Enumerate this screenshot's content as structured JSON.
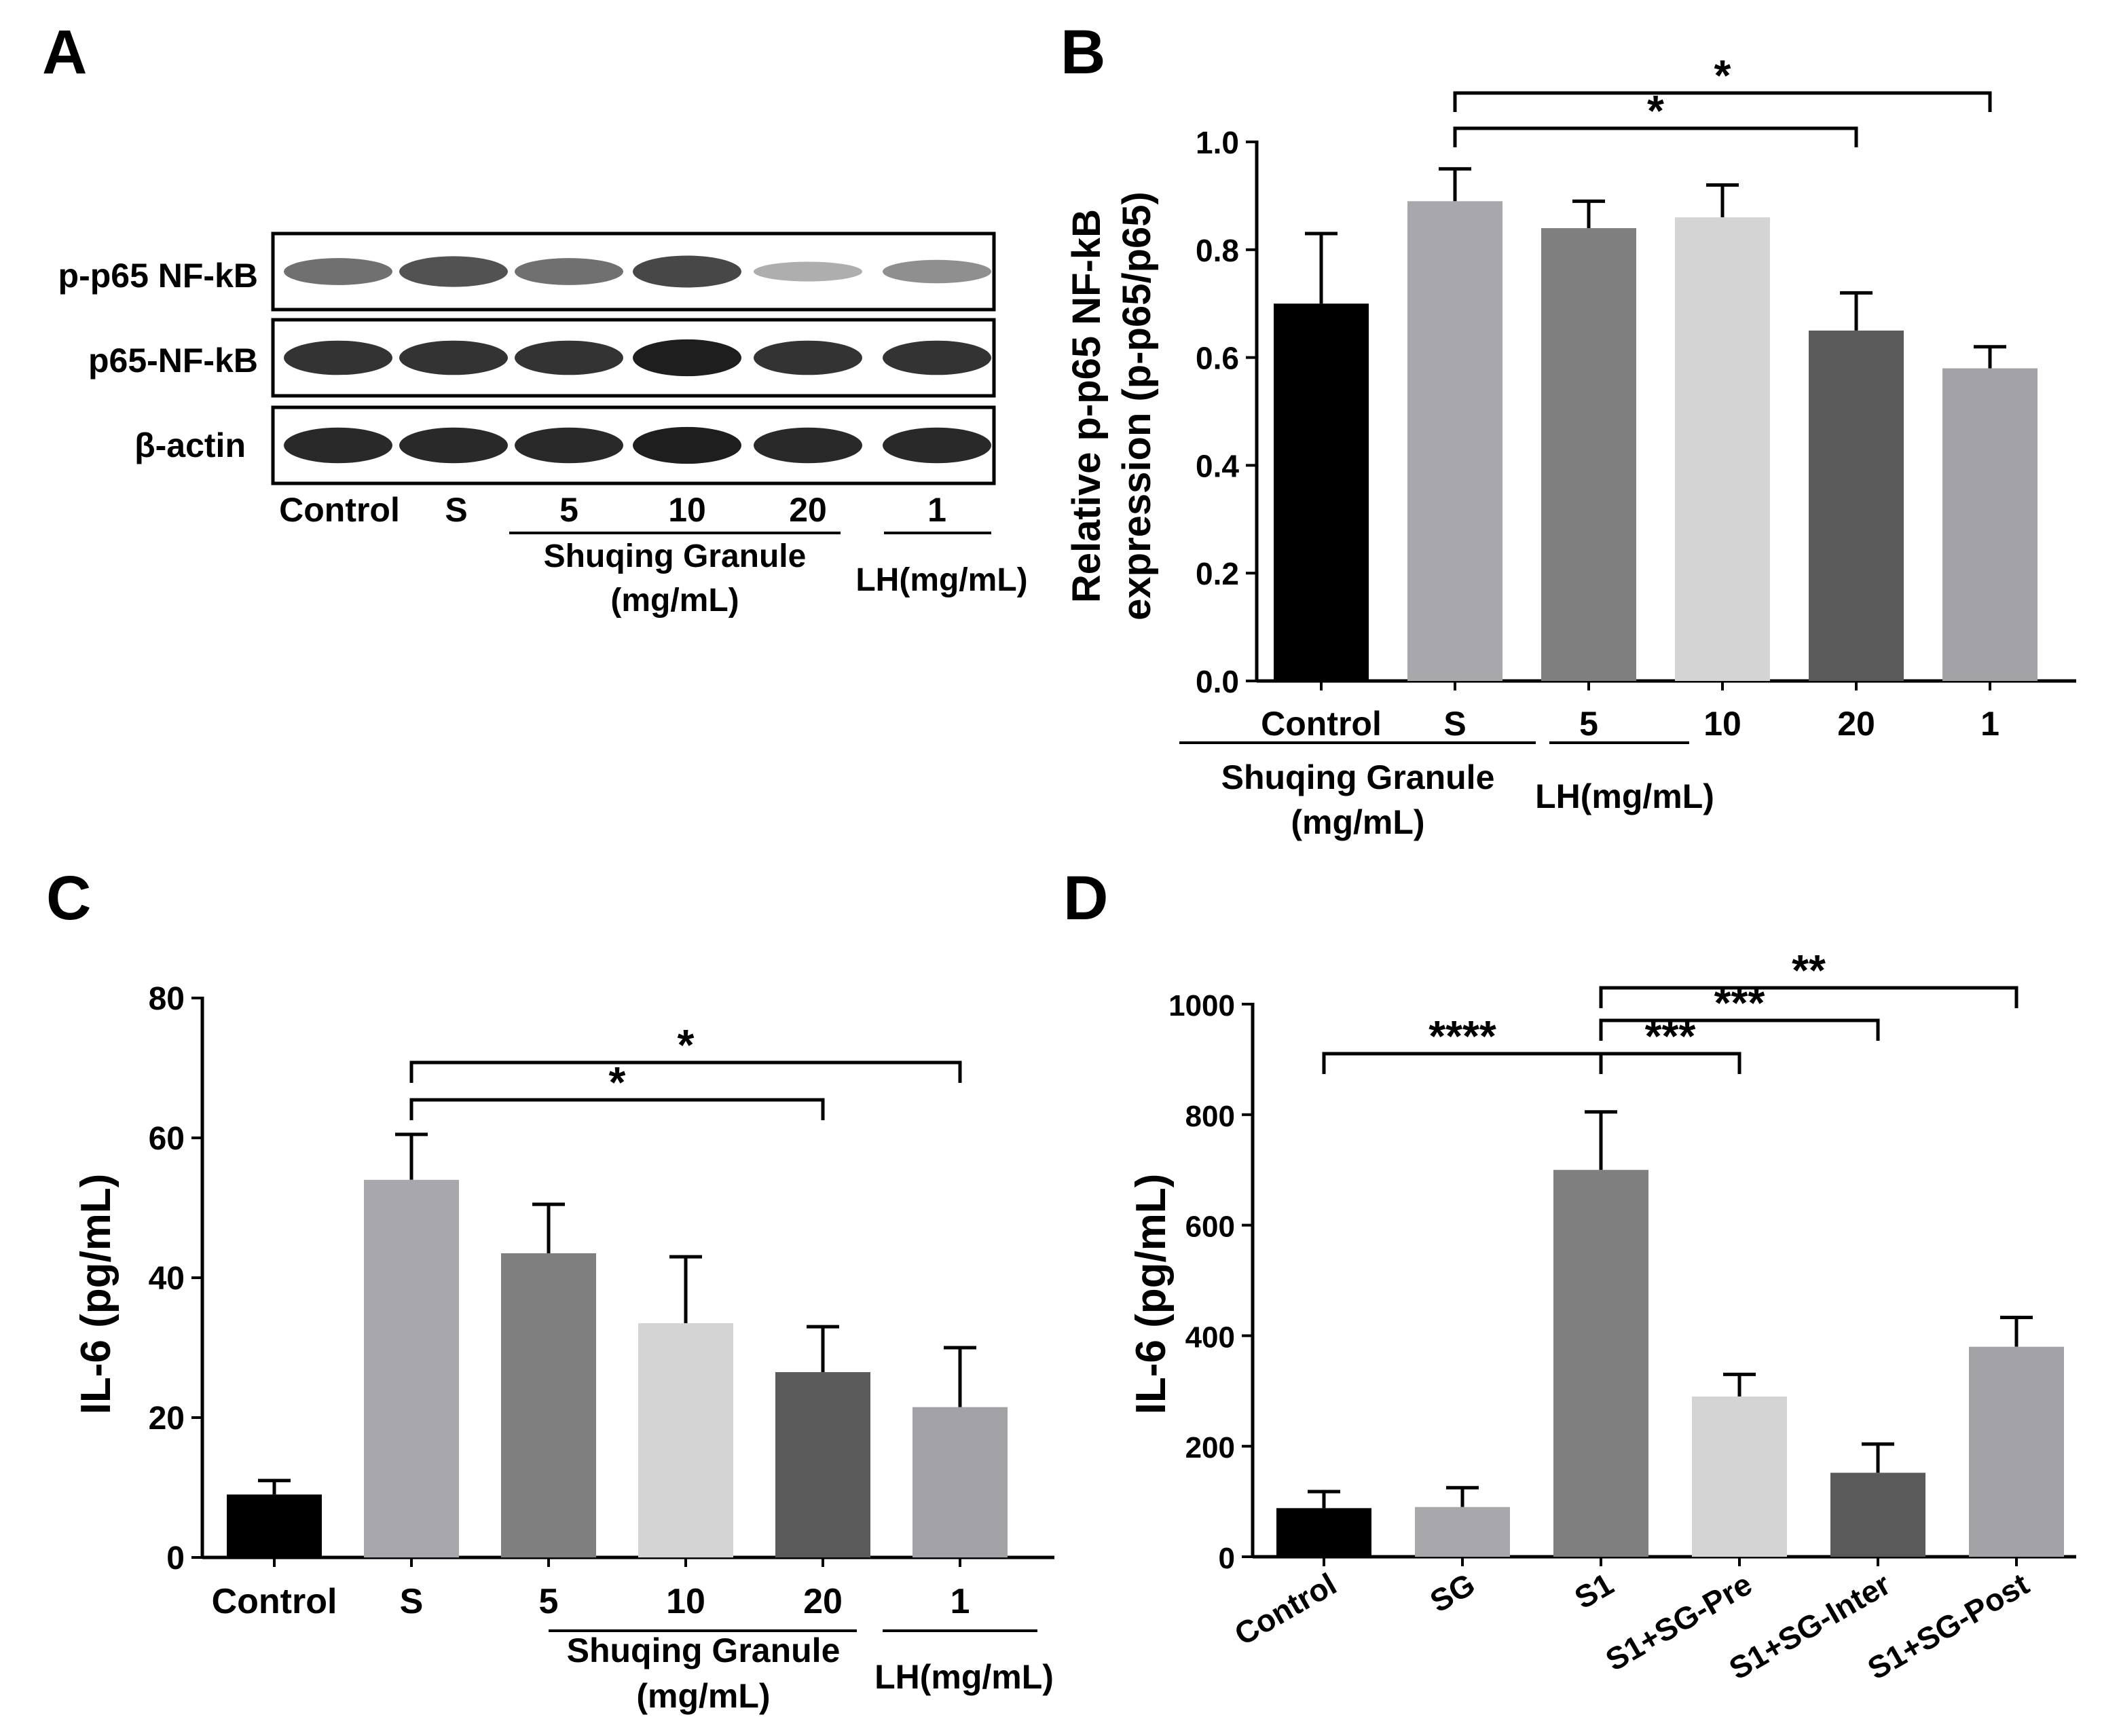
{
  "panels": {
    "A": {
      "letter": "A",
      "rows": [
        "p-p65 NF-kB",
        "p65-NF-kB",
        "β-actin"
      ],
      "lanes": [
        "Control",
        "S",
        "5",
        "10",
        "20",
        "1"
      ],
      "group_sg": [
        "Shuqing Granule",
        "(mg/mL)"
      ],
      "group_lh": "LH(mg/mL)",
      "band_intensity": [
        [
          0.55,
          0.7,
          0.55,
          0.75,
          0.25,
          0.4
        ],
        [
          0.85,
          0.85,
          0.85,
          0.95,
          0.85,
          0.85
        ],
        [
          0.9,
          0.9,
          0.9,
          0.95,
          0.9,
          0.9
        ]
      ]
    },
    "B": {
      "letter": "B"
    },
    "C": {
      "letter": "C"
    },
    "D": {
      "letter": "D"
    }
  },
  "chart_data": [
    {
      "panel": "B",
      "type": "bar",
      "ylabel": [
        "Relative p-p65 NF-kB",
        "expression (p-p65/p65)"
      ],
      "ylim": [
        0,
        1.0
      ],
      "yticks": [
        "0.0",
        "0.2",
        "0.4",
        "0.6",
        "0.8",
        "1.0"
      ],
      "categories": [
        "Control",
        "S",
        "5",
        "10",
        "20",
        "1"
      ],
      "values": [
        0.7,
        0.89,
        0.84,
        0.86,
        0.65,
        0.58
      ],
      "errors": [
        0.13,
        0.06,
        0.05,
        0.06,
        0.07,
        0.04
      ],
      "colors": [
        "#000000",
        "#a8a8ac",
        "#7f7f7f",
        "#d4d4d4",
        "#5a5a5a",
        "#a3a3a7"
      ],
      "group_sg": [
        "Shuqing Granule",
        "(mg/mL)"
      ],
      "group_lh": "LH(mg/mL)",
      "significance": [
        {
          "from": 1,
          "to": 4,
          "label": "*"
        },
        {
          "from": 1,
          "to": 5,
          "label": "*"
        }
      ]
    },
    {
      "panel": "C",
      "type": "bar",
      "ylabel": [
        "IL-6 (pg/mL)"
      ],
      "ylim": [
        0,
        80
      ],
      "yticks": [
        "0",
        "20",
        "40",
        "60",
        "80"
      ],
      "categories": [
        "Control",
        "S",
        "5",
        "10",
        "20",
        "1"
      ],
      "values": [
        9,
        54,
        43.5,
        33.5,
        26.5,
        21.5
      ],
      "errors": [
        2,
        6.5,
        7,
        9.5,
        6.5,
        8.5
      ],
      "colors": [
        "#000000",
        "#a8a8ac",
        "#7f7f7f",
        "#d4d4d4",
        "#5a5a5a",
        "#a3a3a7"
      ],
      "group_sg": [
        "Shuqing Granule",
        "(mg/mL)"
      ],
      "group_lh": "LH(mg/mL)",
      "significance": [
        {
          "from": 1,
          "to": 4,
          "label": "*"
        },
        {
          "from": 1,
          "to": 5,
          "label": "*"
        }
      ]
    },
    {
      "panel": "D",
      "type": "bar",
      "ylabel": [
        "IL-6 (pg/mL)"
      ],
      "ylim": [
        0,
        1000
      ],
      "yticks": [
        "0",
        "200",
        "400",
        "600",
        "800",
        "1000"
      ],
      "categories": [
        "Control",
        "SG",
        "S1",
        "S1+SG-Pre",
        "S1+SG-Inter",
        "S1+SG-Post"
      ],
      "values": [
        88,
        90,
        700,
        290,
        152,
        380
      ],
      "errors": [
        30,
        35,
        105,
        40,
        52,
        53
      ],
      "colors": [
        "#000000",
        "#a8a8ac",
        "#7f7f7f",
        "#d4d4d4",
        "#5a5a5a",
        "#a3a3a7"
      ],
      "significance": [
        {
          "from": 0,
          "to": 2,
          "label": "****"
        },
        {
          "from": 2,
          "to": 3,
          "label": "***"
        },
        {
          "from": 2,
          "to": 4,
          "label": "***"
        },
        {
          "from": 2,
          "to": 5,
          "label": "**"
        }
      ]
    }
  ]
}
